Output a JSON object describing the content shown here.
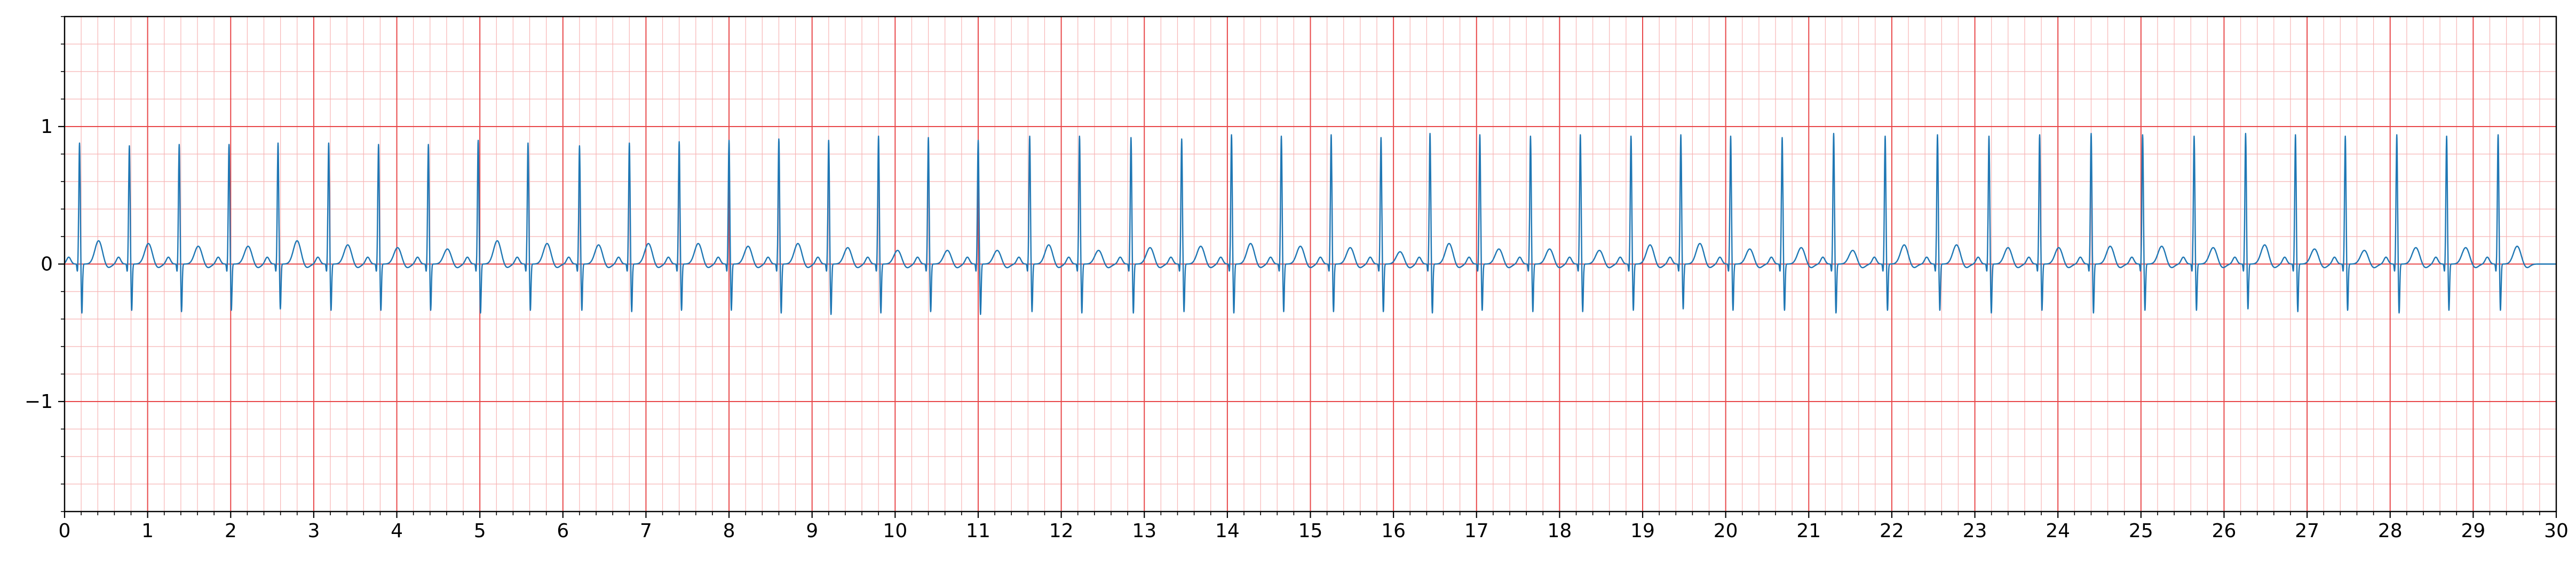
{
  "chart_data": {
    "type": "line",
    "title": "",
    "xlabel": "",
    "ylabel": "",
    "xlim": [
      0,
      30
    ],
    "ylim": [
      -1.8,
      1.8
    ],
    "x_ticks": [
      0,
      1,
      2,
      3,
      4,
      5,
      6,
      7,
      8,
      9,
      10,
      11,
      12,
      13,
      14,
      15,
      16,
      17,
      18,
      19,
      20,
      21,
      22,
      23,
      24,
      25,
      26,
      27,
      28,
      29,
      30
    ],
    "x_tick_labels": [
      "0",
      "1",
      "2",
      "3",
      "4",
      "5",
      "6",
      "7",
      "8",
      "9",
      "10",
      "11",
      "12",
      "13",
      "14",
      "15",
      "16",
      "17",
      "18",
      "19",
      "20",
      "21",
      "22",
      "23",
      "24",
      "25",
      "26",
      "27",
      "28",
      "29",
      "30"
    ],
    "y_ticks": [
      -1,
      0,
      1
    ],
    "y_tick_labels": [
      "−1",
      "0",
      "1"
    ],
    "grid": {
      "major": {
        "x_step": 1,
        "y_step": 1,
        "color": "#e8484a"
      },
      "minor": {
        "x_step": 0.2,
        "y_step": 0.2,
        "color": "#f7b4b4"
      }
    },
    "series": [
      {
        "line_color": "#1f77b4",
        "beat_times": [
          0.18,
          0.78,
          1.38,
          1.98,
          2.57,
          3.18,
          3.78,
          4.38,
          4.98,
          5.58,
          6.2,
          6.8,
          7.4,
          8.0,
          8.6,
          9.2,
          9.8,
          10.4,
          11.0,
          11.62,
          12.22,
          12.84,
          13.45,
          14.05,
          14.65,
          15.25,
          15.85,
          16.44,
          17.04,
          17.65,
          18.25,
          18.86,
          19.46,
          20.06,
          20.68,
          21.3,
          21.92,
          22.55,
          23.17,
          23.78,
          24.4,
          25.02,
          25.64,
          26.26,
          26.86,
          27.46,
          28.08,
          28.68,
          29.3
        ],
        "r_peak": [
          0.88,
          0.86,
          0.87,
          0.87,
          0.88,
          0.88,
          0.87,
          0.87,
          0.9,
          0.88,
          0.86,
          0.88,
          0.89,
          0.9,
          0.91,
          0.9,
          0.93,
          0.92,
          0.9,
          0.93,
          0.93,
          0.92,
          0.91,
          0.94,
          0.93,
          0.94,
          0.92,
          0.95,
          0.94,
          0.93,
          0.94,
          0.93,
          0.94,
          0.93,
          0.92,
          0.95,
          0.93,
          0.94,
          0.93,
          0.94,
          0.95,
          0.94,
          0.93,
          0.95,
          0.94,
          0.93,
          0.94,
          0.93,
          0.94
        ],
        "s_trough": [
          -0.36,
          -0.34,
          -0.35,
          -0.34,
          -0.33,
          -0.34,
          -0.34,
          -0.34,
          -0.36,
          -0.34,
          -0.34,
          -0.35,
          -0.34,
          -0.34,
          -0.36,
          -0.37,
          -0.36,
          -0.35,
          -0.37,
          -0.35,
          -0.36,
          -0.36,
          -0.35,
          -0.36,
          -0.35,
          -0.35,
          -0.35,
          -0.36,
          -0.34,
          -0.35,
          -0.35,
          -0.34,
          -0.33,
          -0.34,
          -0.34,
          -0.36,
          -0.34,
          -0.34,
          -0.36,
          -0.34,
          -0.36,
          -0.34,
          -0.34,
          -0.33,
          -0.35,
          -0.34,
          -0.36,
          -0.34,
          -0.34
        ],
        "t_wave": [
          0.17,
          0.15,
          0.13,
          0.13,
          0.17,
          0.14,
          0.12,
          0.11,
          0.17,
          0.15,
          0.14,
          0.15,
          0.15,
          0.13,
          0.15,
          0.12,
          0.1,
          0.1,
          0.1,
          0.14,
          0.1,
          0.12,
          0.13,
          0.15,
          0.13,
          0.12,
          0.09,
          0.15,
          0.11,
          0.11,
          0.1,
          0.14,
          0.15,
          0.11,
          0.12,
          0.1,
          0.14,
          0.14,
          0.12,
          0.12,
          0.13,
          0.13,
          0.12,
          0.14,
          0.11,
          0.1,
          0.12,
          0.12,
          0.13
        ]
      }
    ]
  }
}
